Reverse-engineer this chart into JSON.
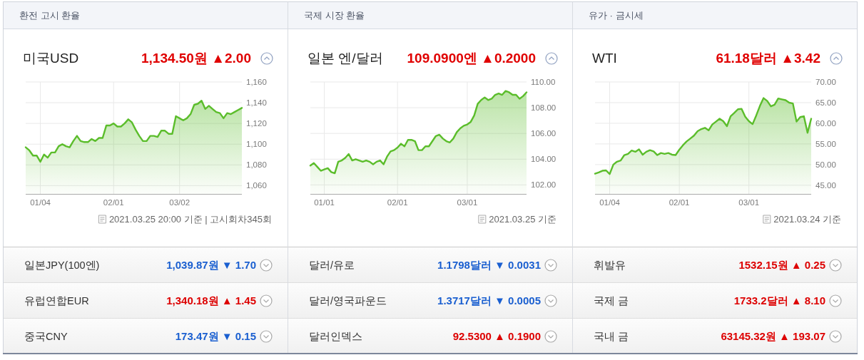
{
  "chart_data": [
    {
      "type": "area",
      "title": "환전 고시 환율",
      "subtitle": "미국USD",
      "annotations": [
        "1,134.50원 ▲2.00",
        "2021.03.25 20:00 기준 | 고시회차345회"
      ],
      "categories": [
        null,
        null,
        null,
        null,
        "01/04",
        null,
        null,
        null,
        null,
        null,
        null,
        null,
        null,
        null,
        null,
        null,
        null,
        null,
        null,
        null,
        null,
        null,
        null,
        null,
        "02/01",
        null,
        null,
        null,
        null,
        null,
        null,
        null,
        null,
        null,
        null,
        null,
        null,
        null,
        null,
        null,
        null,
        null,
        "03/02",
        null,
        null,
        null,
        null,
        null,
        null,
        null,
        null,
        null,
        null,
        null,
        null,
        null,
        null,
        null,
        null,
        null
      ],
      "values": [
        1097,
        1094,
        1089,
        1089,
        1083,
        1090,
        1087,
        1092,
        1092,
        1098,
        1100,
        1098,
        1097,
        1103,
        1108,
        1103,
        1102,
        1102,
        1105,
        1103,
        1106,
        1106,
        1118,
        1118,
        1120,
        1117,
        1117,
        1120,
        1124,
        1121,
        1114,
        1108,
        1103,
        1103,
        1108,
        1108,
        1107,
        1113,
        1113,
        1110,
        1110,
        1127,
        1125,
        1123,
        1125,
        1129,
        1138,
        1139,
        1142,
        1134,
        1137,
        1134,
        1131,
        1130,
        1125,
        1130,
        1129,
        1131,
        1133,
        1135
      ],
      "color": "#5bbd2b",
      "ylim": [
        1052,
        1160
      ],
      "yticks": [
        {
          "value": 1060,
          "label": "1,060"
        },
        {
          "value": 1080,
          "label": "1,080"
        },
        {
          "value": 1100,
          "label": "1,100"
        },
        {
          "value": 1120,
          "label": "1,120"
        },
        {
          "value": 1140,
          "label": "1,140"
        },
        {
          "value": 1160,
          "label": "1,160"
        }
      ],
      "grid": true
    },
    {
      "type": "area",
      "title": "국제 시장 환율",
      "subtitle": "일본 엔/달러",
      "annotations": [
        "109.0900엔 ▲0.2000",
        "2021.03.25 기준"
      ],
      "categories": [
        null,
        null,
        null,
        null,
        "01/01",
        null,
        null,
        null,
        null,
        null,
        null,
        null,
        null,
        null,
        null,
        null,
        null,
        null,
        null,
        null,
        null,
        null,
        null,
        null,
        null,
        "02/01",
        null,
        null,
        null,
        null,
        null,
        null,
        null,
        null,
        null,
        null,
        null,
        null,
        null,
        null,
        null,
        null,
        null,
        null,
        null,
        "03/01",
        null,
        null,
        null,
        null,
        null,
        null,
        null,
        null,
        null,
        null,
        null,
        null,
        null,
        null,
        null,
        null,
        null
      ],
      "values": [
        103.5,
        103.7,
        103.4,
        103.1,
        103.2,
        103.3,
        103.0,
        102.9,
        103.8,
        103.9,
        104.1,
        104.4,
        103.9,
        104.0,
        103.9,
        103.8,
        103.9,
        103.8,
        103.6,
        103.8,
        103.9,
        103.6,
        104.2,
        104.6,
        104.7,
        104.9,
        105.2,
        105.0,
        105.5,
        105.5,
        105.4,
        104.7,
        104.7,
        105.0,
        105.0,
        105.4,
        105.8,
        105.9,
        105.6,
        105.4,
        105.3,
        105.6,
        106.1,
        106.4,
        106.6,
        106.7,
        106.9,
        107.4,
        108.3,
        108.6,
        108.8,
        108.6,
        108.7,
        109.0,
        109.1,
        109.0,
        109.3,
        109.2,
        109.0,
        109.0,
        108.7,
        108.9,
        109.2
      ],
      "color": "#5bbd2b",
      "ylim": [
        101.3,
        110
      ],
      "yticks": [
        {
          "value": 102,
          "label": "102.00"
        },
        {
          "value": 104,
          "label": "104.00"
        },
        {
          "value": 106,
          "label": "106.00"
        },
        {
          "value": 108,
          "label": "108.00"
        },
        {
          "value": 110,
          "label": "110.00"
        }
      ],
      "grid": true
    },
    {
      "type": "area",
      "title": "유가 · 금시세",
      "subtitle": "WTI",
      "annotations": [
        "61.18달러 ▲3.42",
        "2021.03.24 기준"
      ],
      "categories": [
        null,
        null,
        null,
        null,
        "01/04",
        null,
        null,
        null,
        null,
        null,
        null,
        null,
        null,
        null,
        null,
        null,
        null,
        null,
        null,
        null,
        null,
        null,
        null,
        "02/01",
        null,
        null,
        null,
        null,
        null,
        null,
        null,
        null,
        null,
        null,
        null,
        null,
        null,
        null,
        null,
        null,
        null,
        null,
        "03/01",
        null,
        null,
        null,
        null,
        null,
        null,
        null,
        null,
        null,
        null,
        null,
        null,
        null,
        null,
        null,
        null,
        null
      ],
      "values": [
        47.8,
        48.1,
        48.5,
        48.6,
        47.7,
        50.0,
        50.7,
        51.0,
        52.3,
        52.6,
        53.4,
        53.1,
        53.7,
        52.4,
        53.1,
        53.5,
        53.2,
        52.3,
        52.8,
        52.6,
        52.8,
        52.4,
        52.3,
        53.6,
        54.7,
        55.6,
        56.3,
        57.0,
        58.1,
        58.6,
        58.9,
        58.3,
        59.7,
        60.4,
        61.1,
        60.5,
        59.3,
        61.7,
        62.5,
        63.4,
        63.5,
        61.6,
        60.5,
        59.8,
        61.9,
        64.2,
        66.1,
        65.4,
        64.1,
        64.5,
        66.0,
        65.8,
        65.6,
        65.0,
        64.8,
        60.4,
        61.5,
        61.7,
        57.7,
        61.1
      ],
      "color": "#5bbd2b",
      "ylim": [
        42.9,
        70
      ],
      "yticks": [
        {
          "value": 45,
          "label": "45.00"
        },
        {
          "value": 50,
          "label": "50.00"
        },
        {
          "value": 55,
          "label": "55.00"
        },
        {
          "value": 60,
          "label": "60.00"
        },
        {
          "value": 65,
          "label": "65.00"
        },
        {
          "value": 70,
          "label": "70.00"
        }
      ],
      "grid": true
    },
    {
      "type": "other",
      "categories": [
        "일본JPY(100엔)",
        "유럽연합EUR",
        "중국CNY"
      ],
      "value_labels": [
        "1,039.87원 ▼ 1.70",
        "1,340.18원 ▲ 1.45",
        "173.47원 ▼ 0.15"
      ],
      "colors": [
        "#1a5fd0",
        "#dd0000",
        "#1a5fd0"
      ]
    },
    {
      "type": "other",
      "categories": [
        "달러/유로",
        "달러/영국파운드",
        "달러인덱스"
      ],
      "value_labels": [
        "1.1798달러 ▼ 0.0031",
        "1.3717달러 ▼ 0.0005",
        "92.5300 ▲ 0.1900"
      ],
      "colors": [
        "#1a5fd0",
        "#1a5fd0",
        "#dd0000"
      ]
    },
    {
      "type": "other",
      "categories": [
        "휘발유",
        "국제 금",
        "국내 금"
      ],
      "value_labels": [
        "1532.15원 ▲ 0.25",
        "1733.2달러 ▲ 8.10",
        "63145.32원 ▲ 193.07"
      ],
      "colors": [
        "#dd0000",
        "#dd0000",
        "#dd0000"
      ]
    }
  ]
}
